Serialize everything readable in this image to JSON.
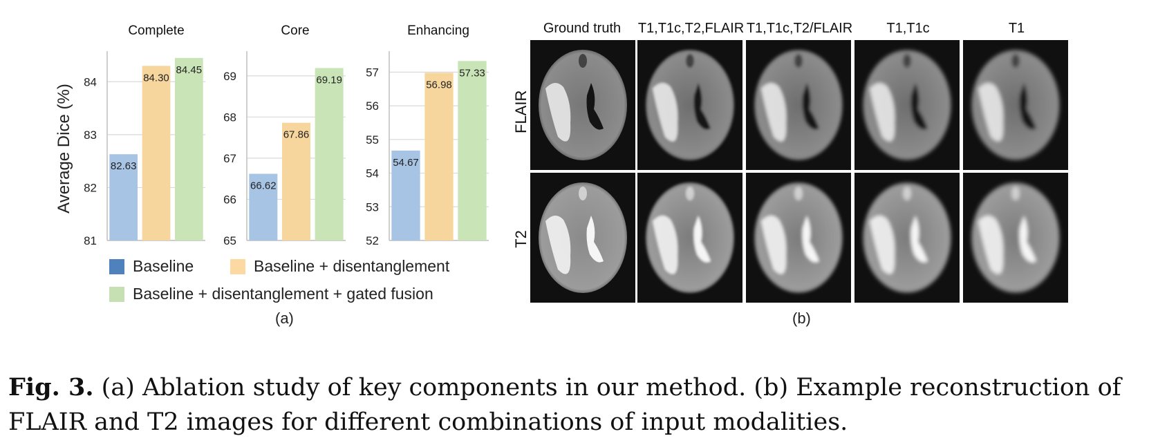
{
  "figure_a": {
    "panel_label": "(a)",
    "legend": [
      {
        "label": "Baseline",
        "color": "#4f81bd"
      },
      {
        "label": "Baseline + disentanglement",
        "color": "#fcd9a2"
      },
      {
        "label": "Baseline + disentanglement + gated fusion",
        "color": "#c6e0b4"
      }
    ]
  },
  "chart_data": [
    {
      "type": "bar",
      "title": "Complete",
      "ylabel": "Average Dice (%)",
      "ylim": [
        81,
        84.5
      ],
      "yticks": [
        81,
        82,
        83,
        84
      ],
      "grid": true,
      "categories": [
        "Baseline",
        "Baseline + disentanglement",
        "Baseline + disentanglement + gated fusion"
      ],
      "values": [
        82.63,
        84.3,
        84.45
      ],
      "value_labels": [
        "82.63",
        "84.30",
        "84.45"
      ],
      "colors": [
        "#a7c4e4",
        "#f7d69e",
        "#c9e4b6"
      ]
    },
    {
      "type": "bar",
      "title": "Core",
      "ylabel": "",
      "ylim": [
        65,
        69.5
      ],
      "yticks": [
        65,
        66,
        67,
        68,
        69
      ],
      "grid": true,
      "categories": [
        "Baseline",
        "Baseline + disentanglement",
        "Baseline + disentanglement + gated fusion"
      ],
      "values": [
        66.62,
        67.86,
        69.19
      ],
      "value_labels": [
        "66.62",
        "67.86",
        "69.19"
      ],
      "colors": [
        "#a7c4e4",
        "#f7d69e",
        "#c9e4b6"
      ]
    },
    {
      "type": "bar",
      "title": "Enhancing",
      "ylabel": "",
      "ylim": [
        52,
        57.5
      ],
      "yticks": [
        52,
        53,
        54,
        55,
        56,
        57
      ],
      "grid": true,
      "categories": [
        "Baseline",
        "Baseline + disentanglement",
        "Baseline + disentanglement + gated fusion"
      ],
      "values": [
        54.67,
        56.98,
        57.33
      ],
      "value_labels": [
        "54.67",
        "56.98",
        "57.33"
      ],
      "colors": [
        "#a7c4e4",
        "#f7d69e",
        "#c9e4b6"
      ]
    }
  ],
  "figure_b": {
    "panel_label": "(b)",
    "columns": [
      "Ground truth",
      "T1,T1c,T2,FLAIR",
      "T1,T1c,T2/FLAIR",
      "T1,T1c",
      "T1"
    ],
    "rows": [
      "FLAIR",
      "T2"
    ]
  },
  "caption": {
    "label": "Fig. 3.",
    "text": "(a) Ablation study of key components in our method. (b) Example reconstruction of FLAIR and T2 images for different combinations of input modalities."
  }
}
